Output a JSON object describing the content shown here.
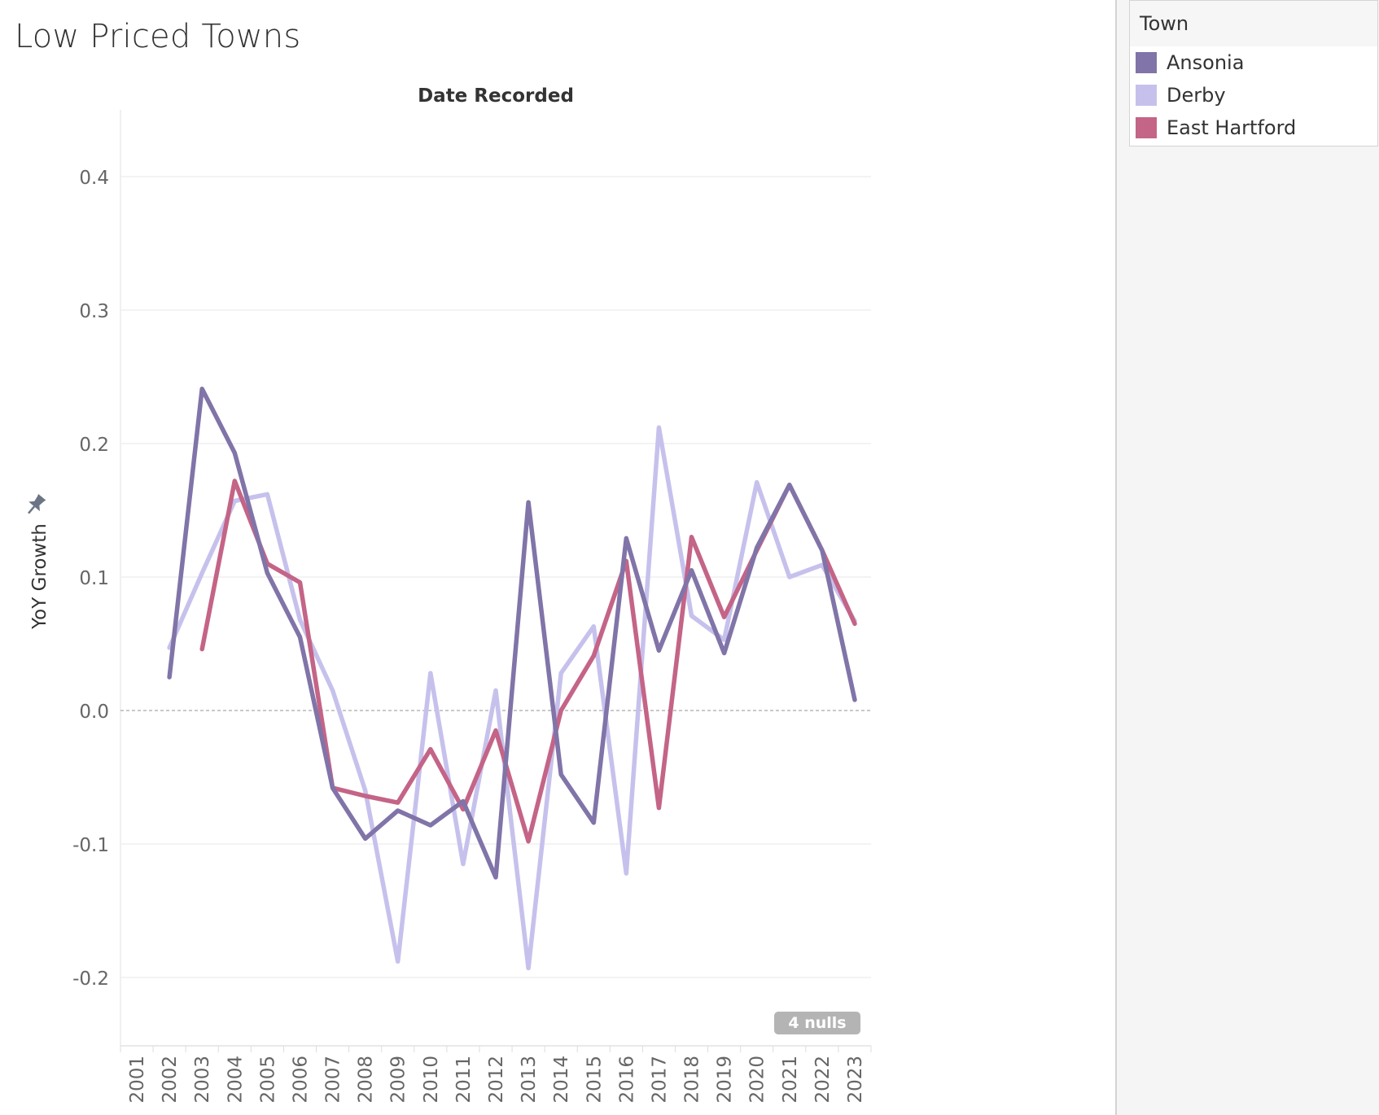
{
  "title": "Low Priced Towns",
  "legend": {
    "title": "Town",
    "items": [
      {
        "label": "Ansonia",
        "color": "#8074a8"
      },
      {
        "label": "Derby",
        "color": "#c6c1ec"
      },
      {
        "label": "East Hartford",
        "color": "#c46487"
      }
    ]
  },
  "nulls_badge": "4 nulls",
  "pin_icon": "pin-icon",
  "chart_data": {
    "type": "line",
    "title": "",
    "xlabel": "Date Recorded",
    "ylabel": "YoY Growth",
    "x": [
      "2001",
      "2002",
      "2003",
      "2004",
      "2005",
      "2006",
      "2007",
      "2008",
      "2009",
      "2010",
      "2011",
      "2012",
      "2013",
      "2014",
      "2015",
      "2016",
      "2017",
      "2018",
      "2019",
      "2020",
      "2021",
      "2022",
      "2023"
    ],
    "ylim": [
      -0.25,
      0.45
    ],
    "yticks": [
      0.4,
      0.3,
      0.2,
      0.1,
      0.0,
      -0.1,
      -0.2
    ],
    "ytick_labels": [
      "0.4",
      "0.3",
      "0.2",
      "0.1",
      "0.0",
      "-0.1",
      "-0.2"
    ],
    "grid": true,
    "legend_position": "right",
    "series": [
      {
        "name": "Ansonia",
        "color": "#8074a8",
        "values": [
          null,
          0.025,
          0.241,
          0.193,
          0.103,
          0.055,
          -0.058,
          -0.096,
          -0.075,
          -0.086,
          -0.068,
          -0.125,
          0.156,
          -0.048,
          -0.084,
          0.129,
          0.045,
          0.105,
          0.043,
          0.122,
          0.169,
          0.12,
          0.008
        ]
      },
      {
        "name": "Derby",
        "color": "#c6c1ec",
        "values": [
          null,
          0.047,
          0.103,
          0.157,
          0.162,
          0.068,
          0.015,
          -0.06,
          -0.188,
          0.028,
          -0.115,
          0.015,
          -0.193,
          0.028,
          0.063,
          -0.122,
          0.212,
          0.071,
          0.053,
          0.171,
          0.1,
          0.109,
          0.067
        ]
      },
      {
        "name": "East Hartford",
        "color": "#c46487",
        "values": [
          null,
          null,
          0.046,
          0.172,
          0.11,
          0.096,
          -0.058,
          -0.064,
          -0.069,
          -0.029,
          -0.074,
          -0.015,
          -0.098,
          0.0,
          0.041,
          0.112,
          -0.073,
          0.13,
          0.07,
          0.12,
          0.169,
          0.12,
          0.065
        ]
      }
    ]
  }
}
